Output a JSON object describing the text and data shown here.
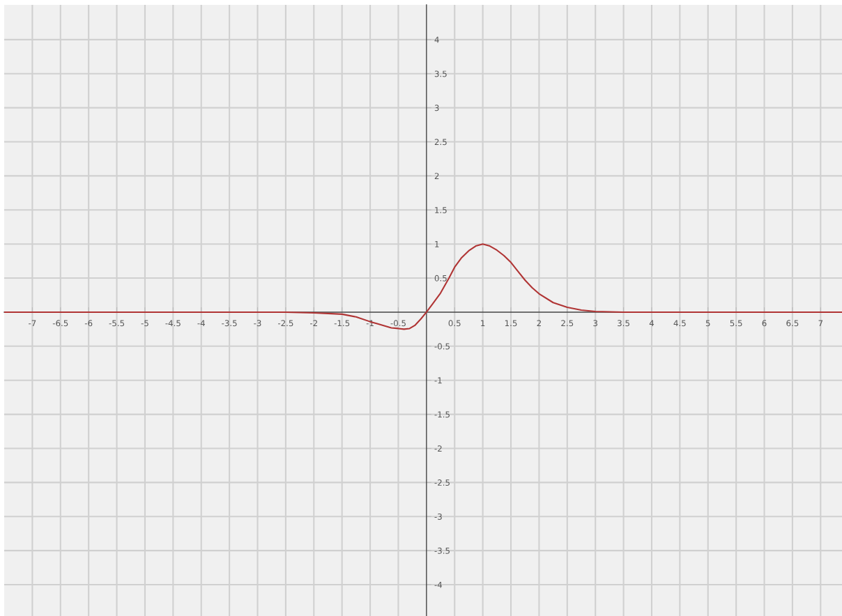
{
  "chart_data": {
    "type": "line",
    "x": [
      -7.5,
      -3,
      -2.5,
      -2,
      -1.75,
      -1.5,
      -1.25,
      -1,
      -0.875,
      -0.75,
      -0.625,
      -0.5,
      -0.4,
      -0.3,
      -0.2,
      -0.1,
      0,
      0.1,
      0.25,
      0.4,
      0.5,
      0.625,
      0.75,
      0.875,
      1,
      1.125,
      1.25,
      1.375,
      1.5,
      1.625,
      1.75,
      1.875,
      2,
      2.25,
      2.5,
      2.75,
      3,
      3.5,
      7.38
    ],
    "series": [
      {
        "color": "#b03434",
        "values": [
          0,
          0,
          0,
          -0.01,
          -0.02,
          -0.03,
          -0.07,
          -0.14,
          -0.17,
          -0.2,
          -0.23,
          -0.24,
          -0.25,
          -0.24,
          -0.19,
          -0.1,
          0,
          0.11,
          0.28,
          0.5,
          0.66,
          0.8,
          0.9,
          0.97,
          1,
          0.97,
          0.91,
          0.83,
          0.73,
          0.6,
          0.47,
          0.36,
          0.27,
          0.14,
          0.07,
          0.03,
          0.01,
          0,
          0
        ]
      }
    ],
    "xlim": [
      -7.5,
      7.38
    ],
    "ylim": [
      -4.46,
      4.51
    ],
    "xticks": [
      -7,
      -6.5,
      -6,
      -5.5,
      -5,
      -4.5,
      -4,
      -3.5,
      -3,
      -2.5,
      -2,
      -1.5,
      -1,
      -0.5,
      0.5,
      1,
      1.5,
      2,
      2.5,
      3,
      3.5,
      4,
      4.5,
      5,
      5.5,
      6,
      6.5,
      7
    ],
    "yticks": [
      -4,
      -3.5,
      -3,
      -2.5,
      -2,
      -1.5,
      -1,
      -0.5,
      0.5,
      1,
      1.5,
      2,
      2.5,
      3,
      3.5,
      4
    ],
    "grid": true,
    "marker": "none",
    "line_style": "solid"
  }
}
